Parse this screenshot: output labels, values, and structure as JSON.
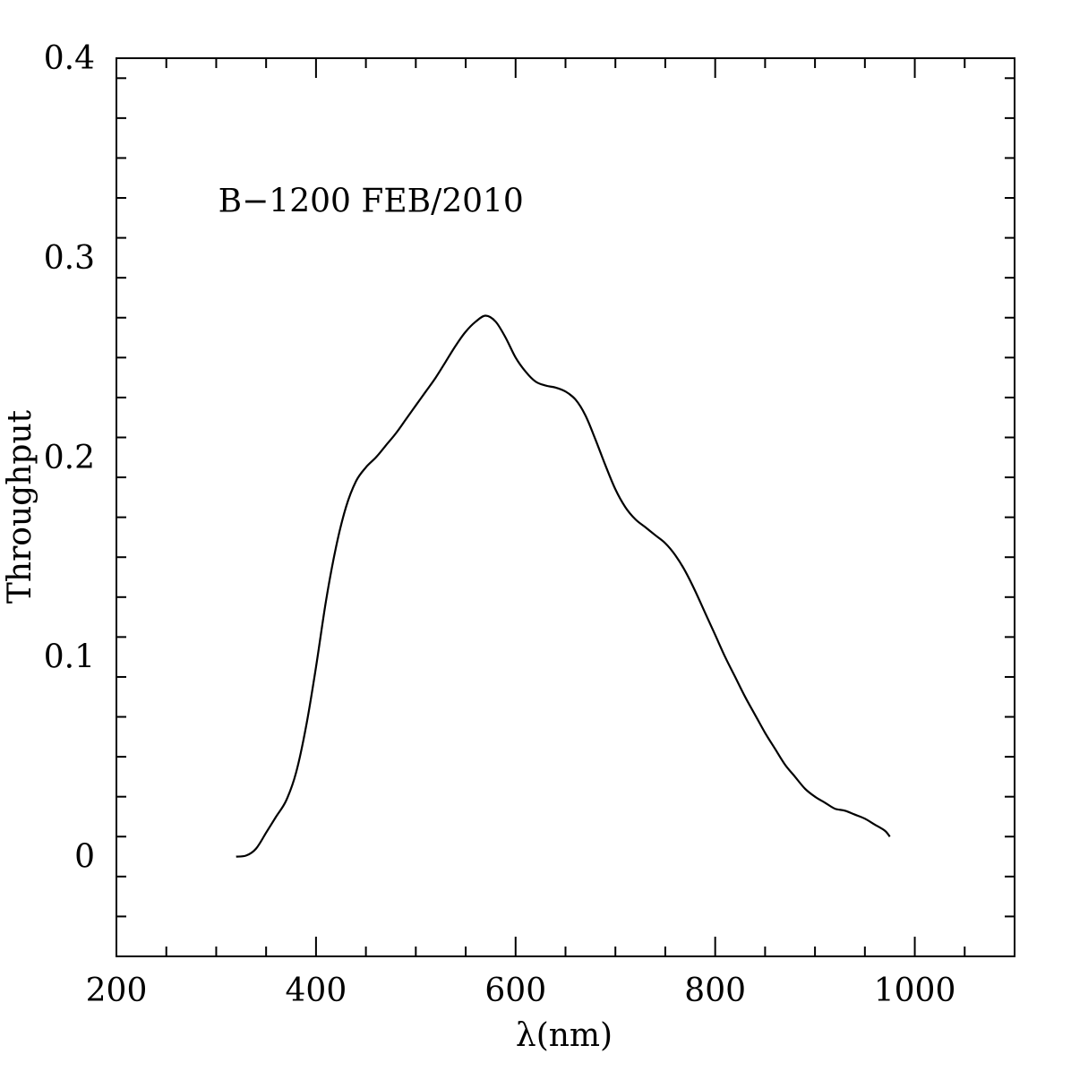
{
  "chart_data": {
    "type": "line",
    "title": "",
    "xlabel": "λ(nm)",
    "ylabel": "Throughput",
    "xlim": [
      200,
      1100
    ],
    "ylim": [
      -0.05,
      0.4
    ],
    "x_ticks": [
      200,
      400,
      600,
      800,
      1000
    ],
    "x_tick_labels": [
      "200",
      "400",
      "600",
      "800",
      "1000"
    ],
    "x_minor_step": 50,
    "y_ticks": [
      0,
      0.1,
      0.2,
      0.3,
      0.4
    ],
    "y_tick_labels": [
      "0",
      "0.1",
      "0.2",
      "0.3",
      "0.4"
    ],
    "y_minor_step": 0.02,
    "grid": false,
    "annotations": [
      {
        "text": "B−1200 FEB/2010",
        "x": 302,
        "y": 0.323
      }
    ],
    "series": [
      {
        "color": "#000000",
        "x": [
          320,
          330,
          340,
          350,
          360,
          370,
          380,
          390,
          400,
          410,
          420,
          430,
          440,
          450,
          460,
          470,
          480,
          490,
          500,
          510,
          520,
          530,
          540,
          550,
          560,
          570,
          580,
          590,
          600,
          610,
          620,
          630,
          640,
          650,
          660,
          670,
          680,
          690,
          700,
          710,
          720,
          730,
          740,
          750,
          760,
          770,
          780,
          790,
          800,
          810,
          820,
          830,
          840,
          850,
          860,
          870,
          880,
          890,
          900,
          910,
          920,
          930,
          940,
          950,
          960,
          970,
          975
        ],
        "y": [
          0.0,
          0.0005,
          0.004,
          0.012,
          0.02,
          0.028,
          0.042,
          0.065,
          0.095,
          0.128,
          0.155,
          0.175,
          0.188,
          0.195,
          0.2,
          0.206,
          0.212,
          0.219,
          0.226,
          0.233,
          0.24,
          0.248,
          0.256,
          0.263,
          0.268,
          0.271,
          0.268,
          0.26,
          0.25,
          0.243,
          0.238,
          0.236,
          0.235,
          0.233,
          0.229,
          0.221,
          0.209,
          0.196,
          0.184,
          0.175,
          0.169,
          0.165,
          0.161,
          0.157,
          0.151,
          0.143,
          0.133,
          0.122,
          0.111,
          0.1,
          0.09,
          0.08,
          0.071,
          0.062,
          0.054,
          0.046,
          0.04,
          0.034,
          0.03,
          0.027,
          0.024,
          0.023,
          0.021,
          0.019,
          0.016,
          0.013,
          0.01
        ]
      }
    ]
  }
}
